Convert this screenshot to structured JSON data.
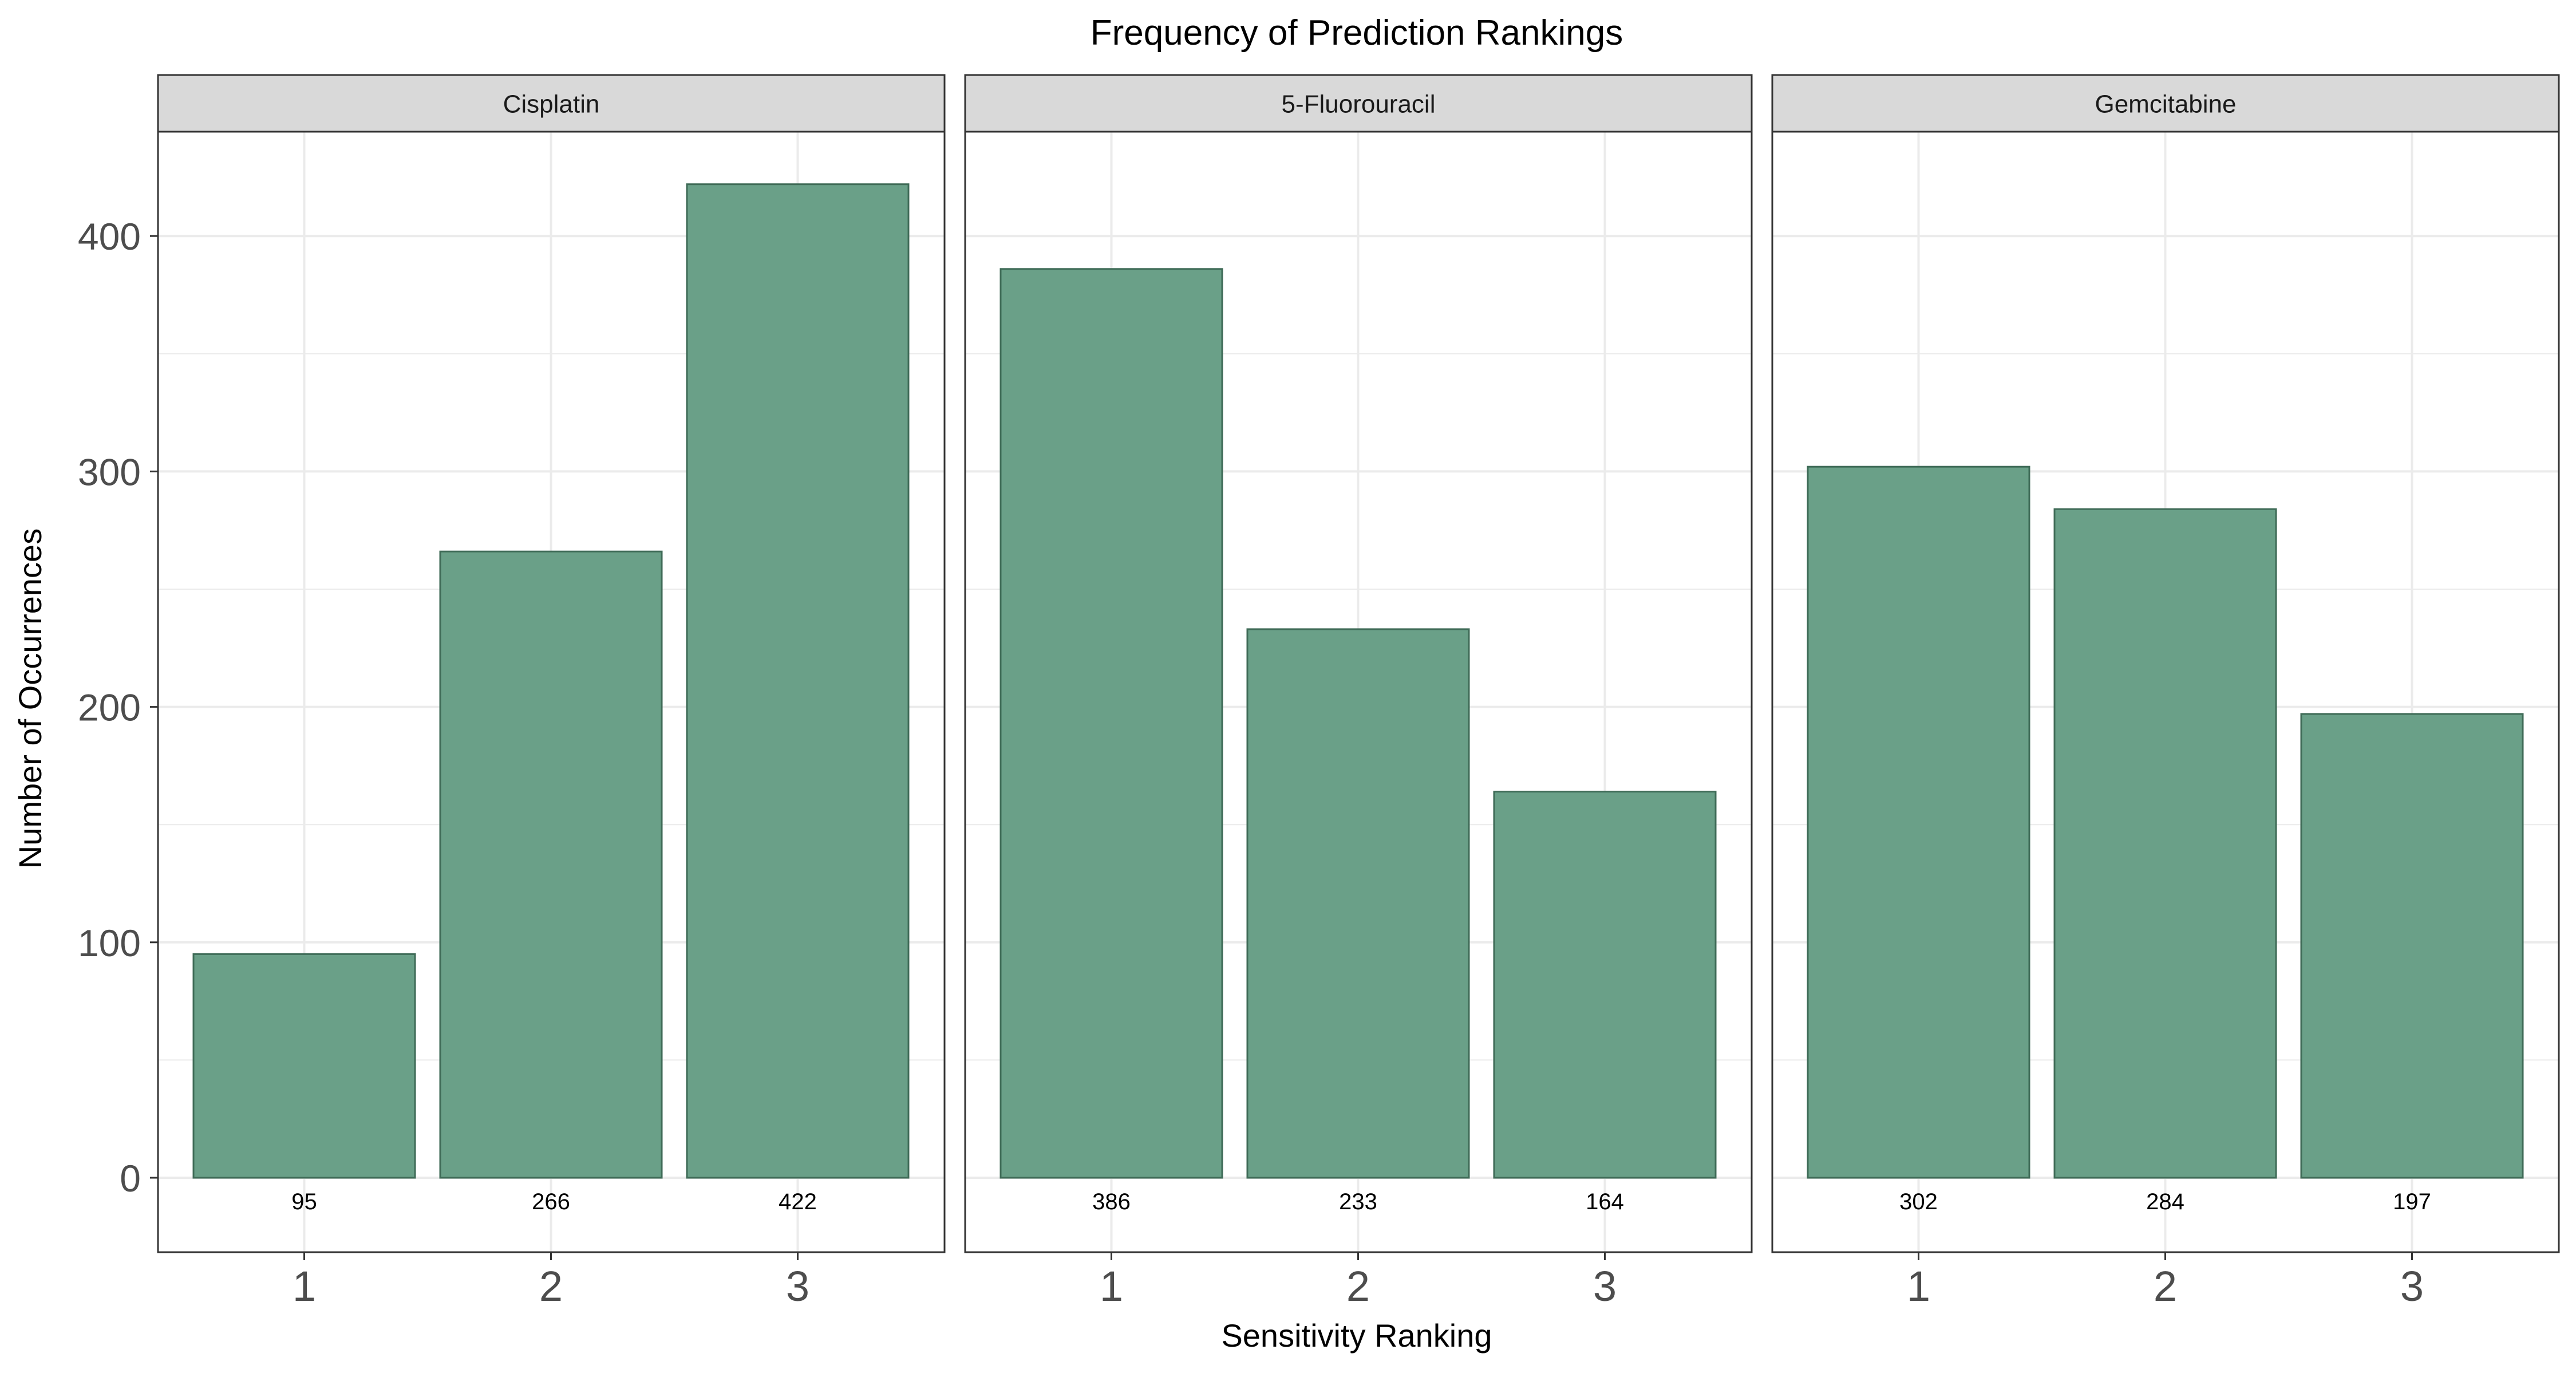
{
  "chart_data": {
    "type": "bar",
    "title": "Frequency of Prediction Rankings",
    "xlabel": "Sensitivity Ranking",
    "ylabel": "Number of Occurrences",
    "categories": [
      "1",
      "2",
      "3"
    ],
    "ylim": [
      0,
      440
    ],
    "yticks": [
      0,
      100,
      200,
      300,
      400
    ],
    "grid": true,
    "legend": "none",
    "colors": {
      "bar_fill": "#6aa088",
      "bar_stroke": "#3f6b57",
      "strip_bg": "#d9d9d9",
      "grid": "#ebebeb"
    },
    "facets": [
      {
        "name": "Cisplatin",
        "values": [
          95,
          266,
          422
        ]
      },
      {
        "name": "5-Fluorouracil",
        "values": [
          386,
          233,
          164
        ]
      },
      {
        "name": "Gemcitabine",
        "values": [
          302,
          284,
          197
        ]
      }
    ]
  }
}
